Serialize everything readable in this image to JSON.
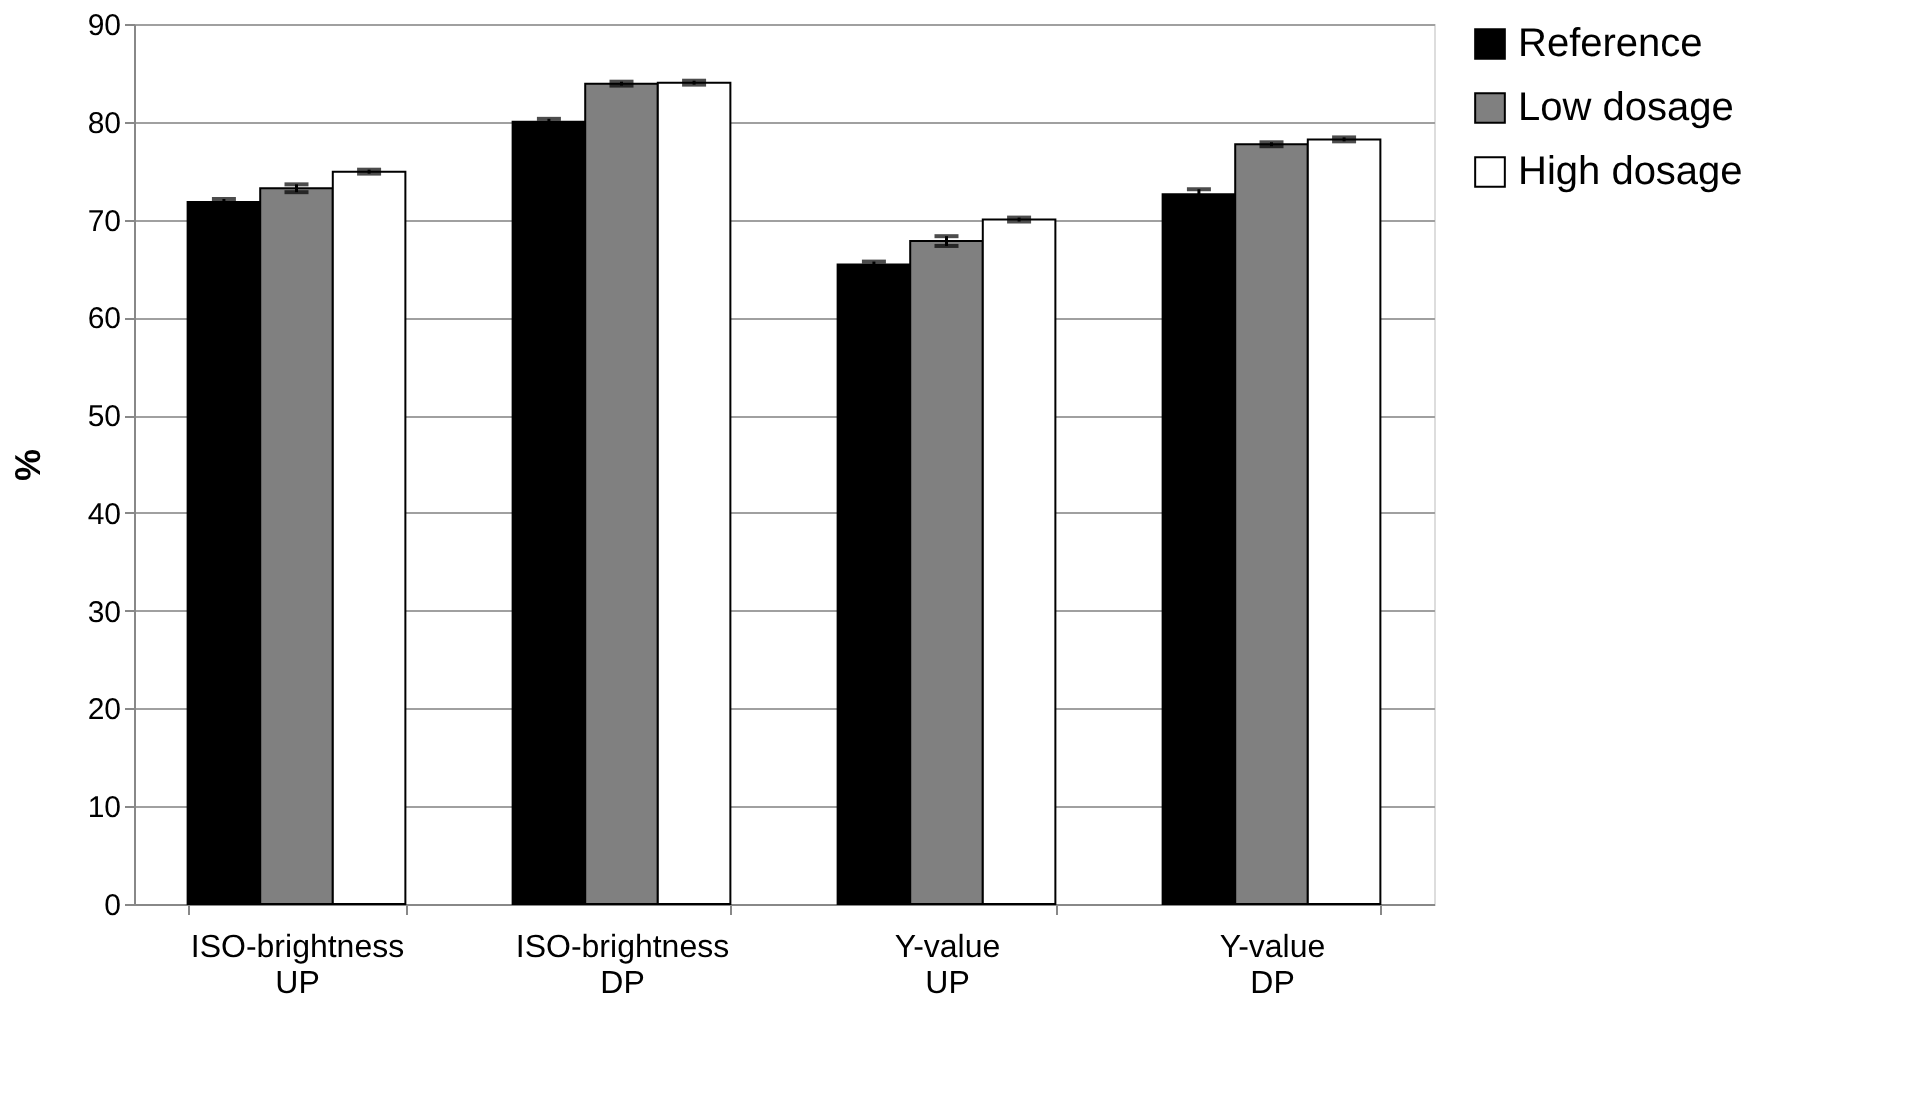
{
  "chart_data": {
    "type": "bar",
    "ylabel": "%",
    "categories": [
      "ISO-brightness UP",
      "ISO-brightness DP",
      "Y-value UP",
      "Y-value DP"
    ],
    "series": [
      {
        "name": "Reference",
        "color": "#000000",
        "values": [
          71.8,
          80.0,
          65.4,
          72.6
        ],
        "errors": [
          0.3,
          0.3,
          0.3,
          0.5
        ]
      },
      {
        "name": "Low dosage",
        "color": "#808080",
        "values": [
          73.2,
          83.9,
          67.8,
          77.7
        ],
        "errors": [
          0.4,
          0.2,
          0.5,
          0.2
        ]
      },
      {
        "name": "High dosage",
        "color": "#ffffff",
        "values": [
          74.9,
          84.0,
          70.0,
          78.2
        ],
        "errors": [
          0.2,
          0.2,
          0.2,
          0.2
        ]
      }
    ],
    "ylim": [
      0,
      90
    ],
    "yticks": [
      0,
      10,
      20,
      30,
      40,
      50,
      60,
      70,
      80,
      90
    ],
    "grid": "y",
    "legend": "right"
  }
}
